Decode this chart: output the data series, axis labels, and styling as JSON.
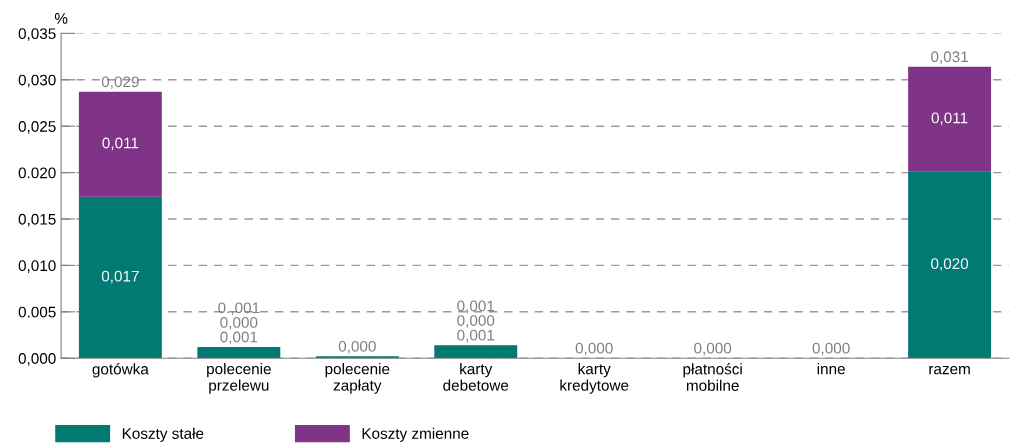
{
  "chart_data": {
    "type": "bar",
    "stacked": true,
    "ylabel": "%",
    "categories": [
      "gotówka",
      "polecenie\nprzelewu",
      "polecenie\nzapłaty",
      "karty\ndebetowe",
      "karty\nkredytowe",
      "płatności\nmobilne",
      "inne",
      "razem"
    ],
    "series": [
      {
        "name": "Koszty stałe",
        "color": "#007a72",
        "values": [
          0.0174,
          0.0012,
          0.0002,
          0.0014,
          0,
          0,
          0,
          0.0201
        ],
        "value_labels": [
          "0,017",
          "0,001",
          null,
          "0,001",
          null,
          null,
          null,
          "0,020"
        ]
      },
      {
        "name": "Koszty zmienne",
        "color": "#7f3487",
        "values": [
          0.0113,
          0,
          0,
          0,
          0,
          0,
          0,
          0.0113
        ],
        "value_labels": [
          "0,011",
          "0,000",
          null,
          "0,000",
          null,
          null,
          null,
          "0,011"
        ]
      }
    ],
    "totals": [
      "0,029",
      "0.,001",
      "0,000",
      "0,001",
      "0,000",
      "0,000",
      "0,000",
      "0,031"
    ],
    "ylim": [
      0,
      0.035
    ],
    "yticks": [
      {
        "value": 0,
        "label": "0,000"
      },
      {
        "value": 0.005,
        "label": "0.005"
      },
      {
        "value": 0.01,
        "label": "0,010"
      },
      {
        "value": 0.015,
        "label": "0,015"
      },
      {
        "value": 0.02,
        "label": "0.020"
      },
      {
        "value": 0.025,
        "label": "0,025"
      },
      {
        "value": 0.03,
        "label": "0,030"
      },
      {
        "value": 0.035,
        "label": "0,035"
      }
    ],
    "grid": "y",
    "legend": "bottom left"
  }
}
